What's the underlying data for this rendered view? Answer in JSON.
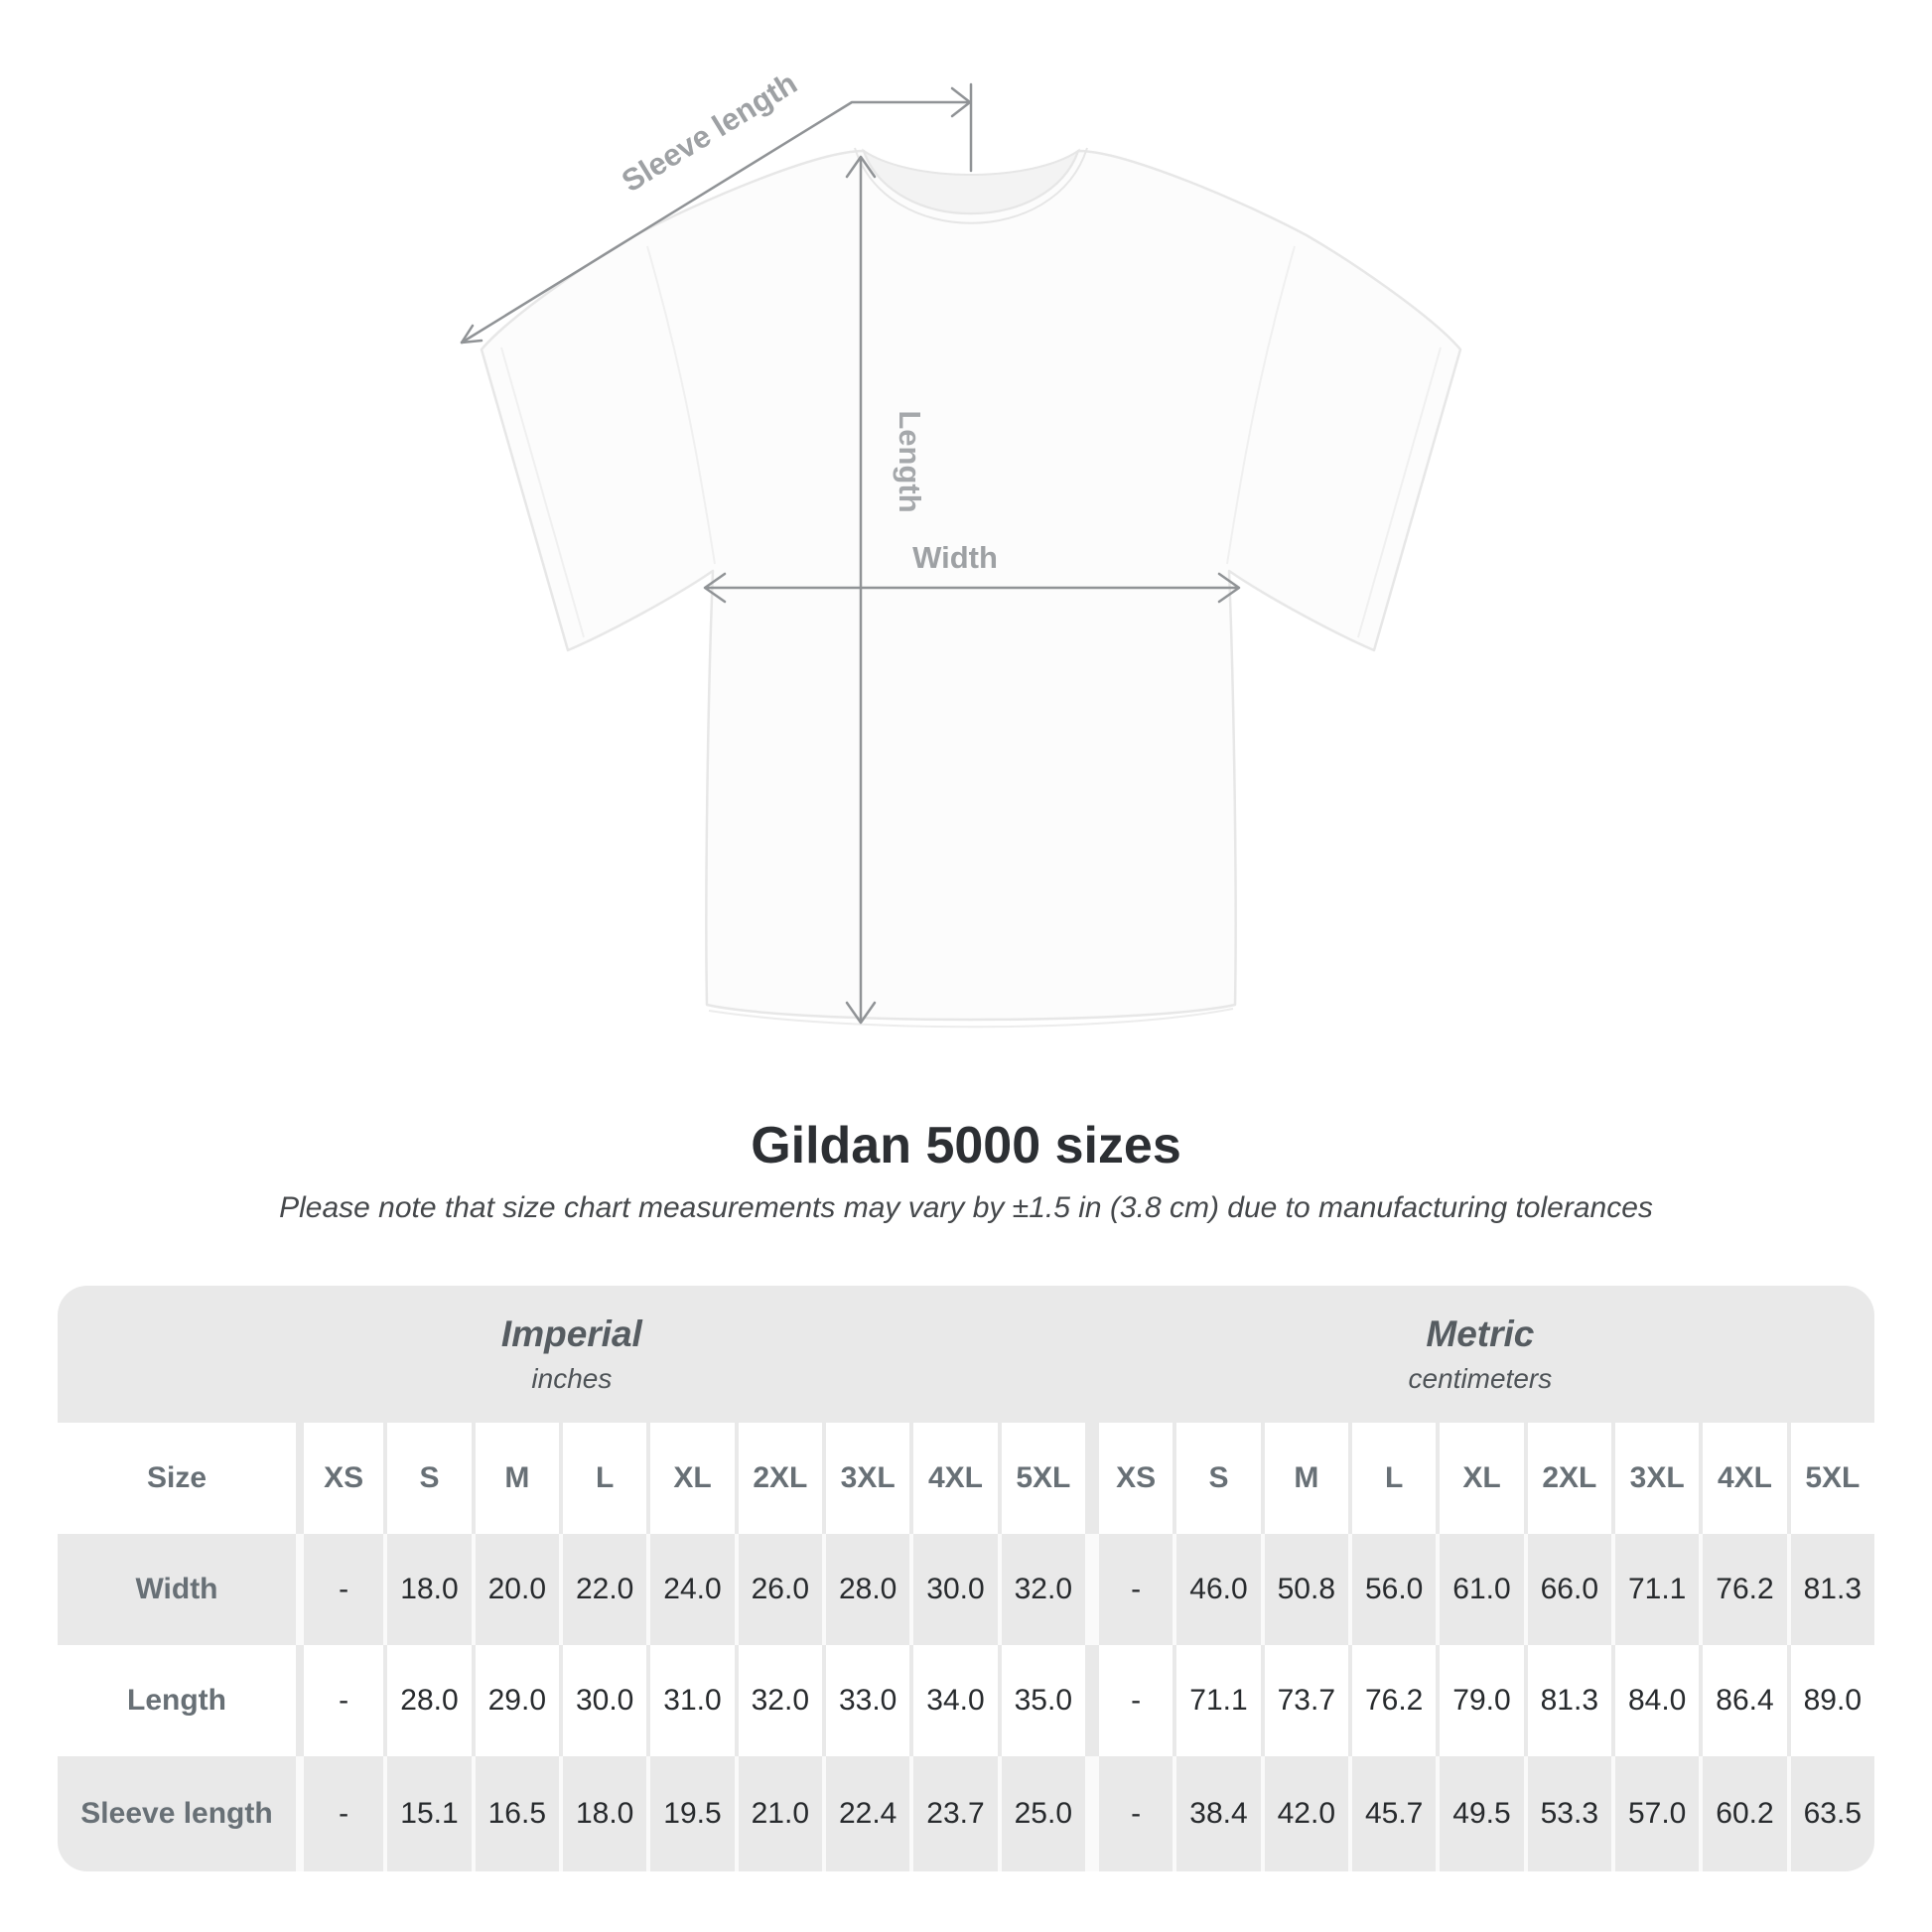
{
  "diagram": {
    "sleeve_label": "Sleeve length",
    "length_label": "Length",
    "width_label": "Width",
    "line_color": "#909396",
    "label_color": "#9ea1a4"
  },
  "heading": {
    "title": "Gildan 5000 sizes",
    "subtitle": "Please note that size chart measurements may vary by ±1.5 in (3.8 cm) due to manufacturing tolerances"
  },
  "table": {
    "size_header": "Size",
    "groups": [
      {
        "label": "Imperial",
        "unit": "inches"
      },
      {
        "label": "Metric",
        "unit": "centimeters"
      }
    ],
    "sizes": [
      "XS",
      "S",
      "M",
      "L",
      "XL",
      "2XL",
      "3XL",
      "4XL",
      "5XL"
    ],
    "rows": [
      {
        "label": "Width",
        "imperial": [
          "-",
          "18.0",
          "20.0",
          "22.0",
          "24.0",
          "26.0",
          "28.0",
          "30.0",
          "32.0"
        ],
        "metric": [
          "-",
          "46.0",
          "50.8",
          "56.0",
          "61.0",
          "66.0",
          "71.1",
          "76.2",
          "81.3"
        ]
      },
      {
        "label": "Length",
        "imperial": [
          "-",
          "28.0",
          "29.0",
          "30.0",
          "31.0",
          "32.0",
          "33.0",
          "34.0",
          "35.0"
        ],
        "metric": [
          "-",
          "71.1",
          "73.7",
          "76.2",
          "79.0",
          "81.3",
          "84.0",
          "86.4",
          "89.0"
        ]
      },
      {
        "label": "Sleeve length",
        "imperial": [
          "-",
          "15.1",
          "16.5",
          "18.0",
          "19.5",
          "21.0",
          "22.4",
          "23.7",
          "25.0"
        ],
        "metric": [
          "-",
          "38.4",
          "42.0",
          "45.7",
          "49.5",
          "53.3",
          "57.0",
          "60.2",
          "63.5"
        ]
      }
    ],
    "colors": {
      "band": "#e9e9e9",
      "alt_row": "#e9e9e9",
      "header_text": "#687076",
      "value_text": "#272a2d"
    }
  },
  "chart_data": {
    "type": "table",
    "title": "Gildan 5000 sizes",
    "note": "Size chart measurements may vary by ±1.5 in (3.8 cm) due to manufacturing tolerances",
    "sizes": [
      "XS",
      "S",
      "M",
      "L",
      "XL",
      "2XL",
      "3XL",
      "4XL",
      "5XL"
    ],
    "imperial_inches": {
      "Width": [
        null,
        18.0,
        20.0,
        22.0,
        24.0,
        26.0,
        28.0,
        30.0,
        32.0
      ],
      "Length": [
        null,
        28.0,
        29.0,
        30.0,
        31.0,
        32.0,
        33.0,
        34.0,
        35.0
      ],
      "Sleeve length": [
        null,
        15.1,
        16.5,
        18.0,
        19.5,
        21.0,
        22.4,
        23.7,
        25.0
      ]
    },
    "metric_centimeters": {
      "Width": [
        null,
        46.0,
        50.8,
        56.0,
        61.0,
        66.0,
        71.1,
        76.2,
        81.3
      ],
      "Length": [
        null,
        71.1,
        73.7,
        76.2,
        79.0,
        81.3,
        84.0,
        86.4,
        89.0
      ],
      "Sleeve length": [
        null,
        38.4,
        42.0,
        45.7,
        49.5,
        53.3,
        57.0,
        60.2,
        63.5
      ]
    }
  }
}
